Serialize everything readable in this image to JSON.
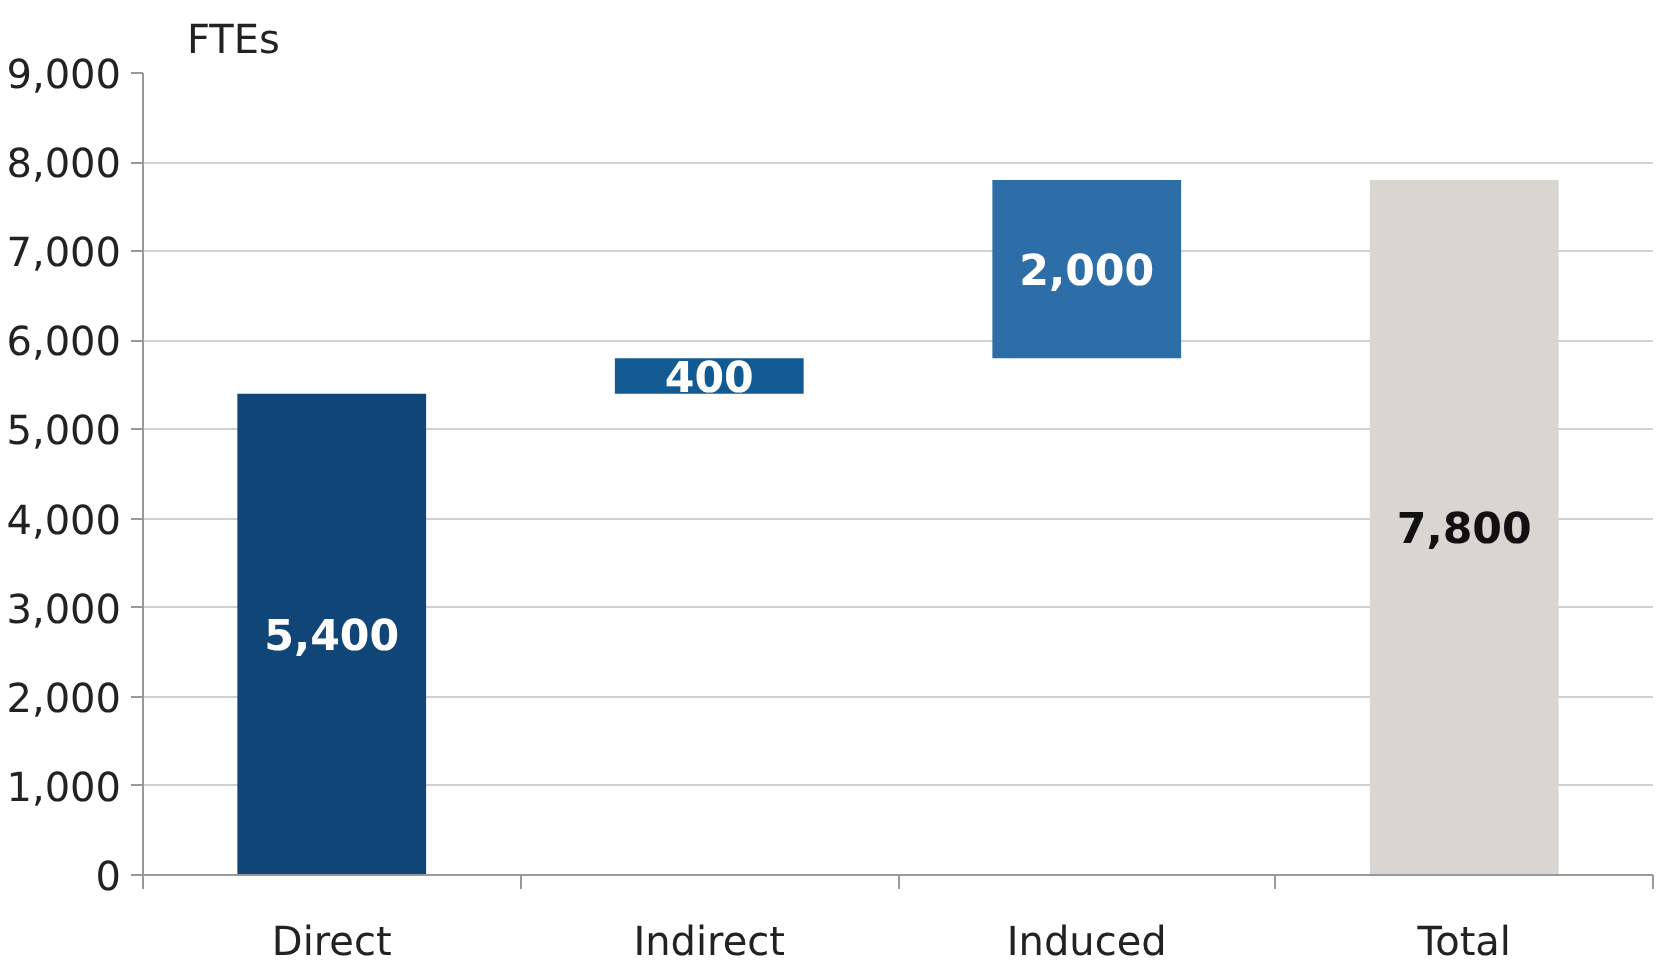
{
  "chart_data": {
    "type": "bar",
    "ylabel": "FTEs",
    "categories": [
      "Direct",
      "Indirect",
      "Induced",
      "Total"
    ],
    "values": [
      5400,
      400,
      2000,
      7800
    ],
    "base": [
      0,
      5400,
      5800,
      0
    ],
    "colors": [
      "#0f4577",
      "#125a92",
      "#2d6ea8",
      "#d9d6d2"
    ],
    "data_labels": true,
    "value_labels": [
      "5,400",
      "400",
      "2,000",
      "7,800"
    ],
    "ylim": [
      0,
      9000
    ],
    "yticks": [
      {
        "value": 0,
        "label": "0"
      },
      {
        "value": 1000,
        "label": "1,000"
      },
      {
        "value": 2000,
        "label": "2,000"
      },
      {
        "value": 3000,
        "label": "3,000"
      },
      {
        "value": 4000,
        "label": "4,000"
      },
      {
        "value": 5000,
        "label": "5,000"
      },
      {
        "value": 6000,
        "label": "6,000"
      },
      {
        "value": 7000,
        "label": "7,000"
      },
      {
        "value": 8000,
        "label": "8,000"
      },
      {
        "value": 9000,
        "label": "9,000"
      }
    ],
    "grid": "y"
  }
}
